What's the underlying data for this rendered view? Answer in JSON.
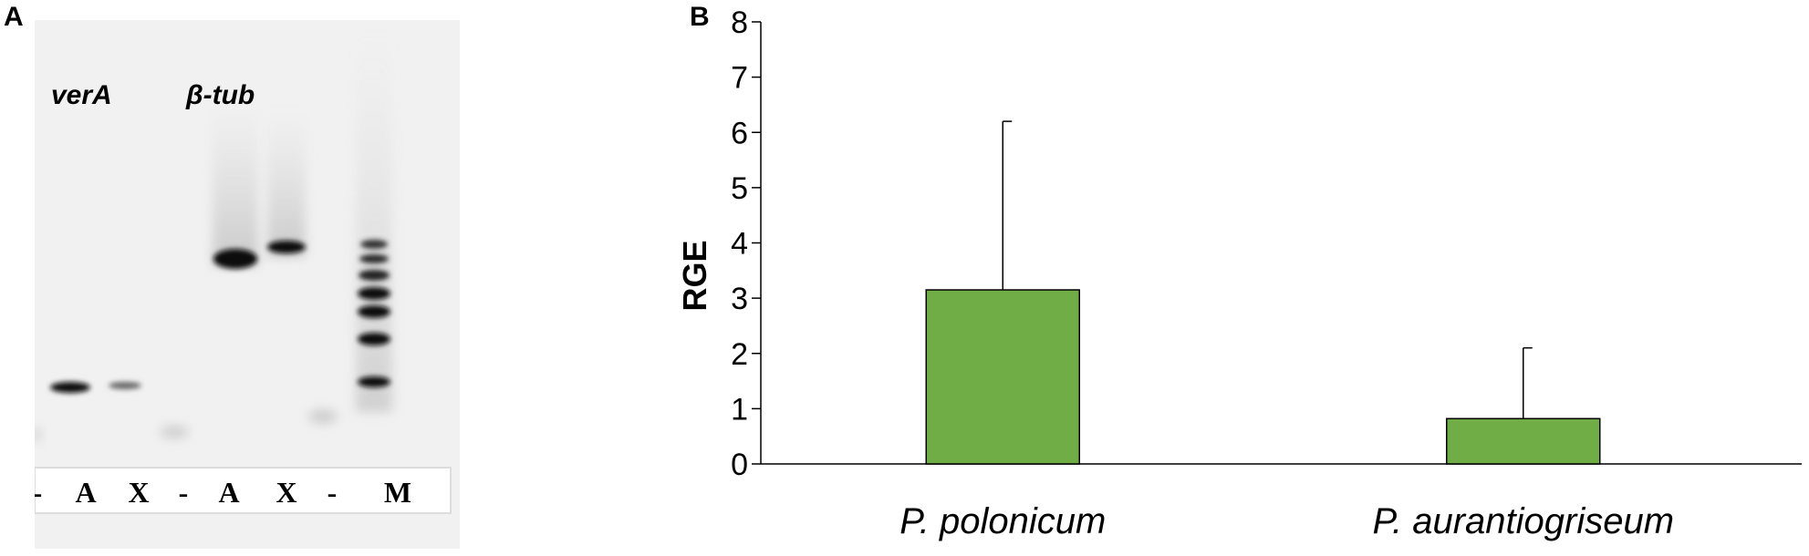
{
  "panels": {
    "a_label": "A",
    "b_label": "B"
  },
  "gel": {
    "gene_labels": [
      "verA",
      "β-tub"
    ],
    "lane_labels": [
      "-",
      "A",
      "X",
      "-",
      "A",
      "X",
      "-",
      "M"
    ]
  },
  "chart_data": {
    "type": "bar",
    "categories": [
      "P. polonicum",
      "P. aurantiogriseum"
    ],
    "values": [
      3.15,
      0.82
    ],
    "error_bars_upper": [
      6.2,
      2.1
    ],
    "ylabel": "RGE",
    "xlabel": "",
    "ylim": [
      0,
      8
    ],
    "yticks": [
      0,
      1,
      2,
      3,
      4,
      5,
      6,
      7,
      8
    ],
    "grid": false,
    "legend": "none",
    "bar_color": "#70ad47",
    "bar_edge_color": "#000000"
  }
}
